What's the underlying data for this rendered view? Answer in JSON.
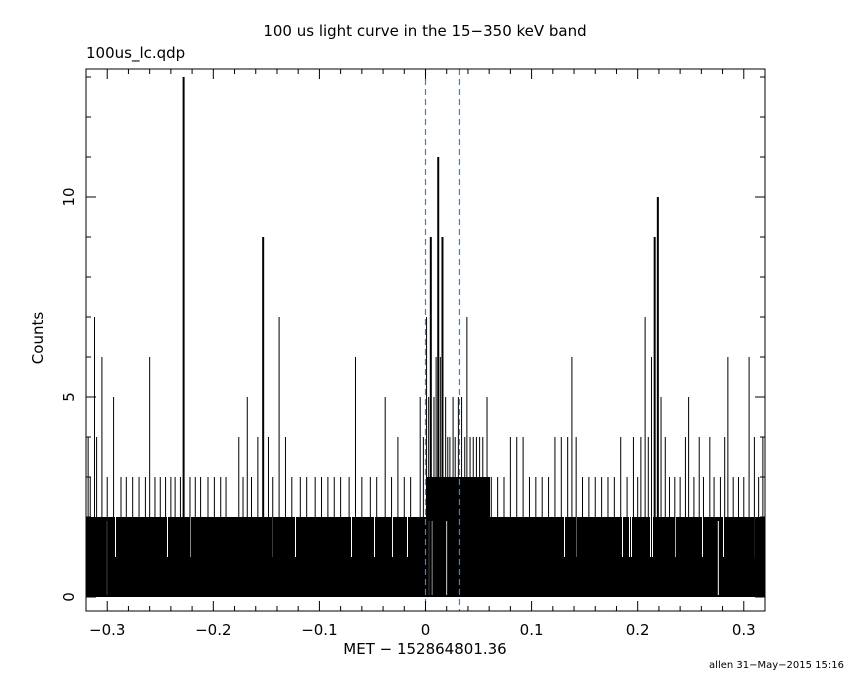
{
  "chart_data": {
    "type": "bar",
    "title": "100 us light curve in the 15−350 keV band",
    "file_label": "100us_lc.qdp",
    "xlabel": "MET − 152864801.36",
    "ylabel": "Counts",
    "footer": "allen 31−May−2015 15:16",
    "xlim": [
      -0.32,
      0.32
    ],
    "ylim": [
      -0.35,
      13.2
    ],
    "xticks_major": [
      -0.3,
      -0.2,
      -0.1,
      0,
      0.1,
      0.2,
      0.3
    ],
    "xtick_labels": [
      "−0.3",
      "−0.2",
      "−0.1",
      "0",
      "0.1",
      "0.2",
      "0.3"
    ],
    "yticks_major": [
      0,
      5,
      10
    ],
    "ytick_labels": [
      "0",
      "5",
      "10"
    ],
    "grid": false,
    "vlines": [
      {
        "x": 0.0,
        "color": "#3a7fd0",
        "style": "dashed"
      },
      {
        "x": 0.032,
        "color": "#3a7fd0",
        "style": "dashed"
      }
    ],
    "bin_width": 0.0001,
    "baseline_level": 2,
    "post_trigger_level": 3,
    "post_trigger_range": [
      0.0,
      0.06
    ],
    "spikes": [
      {
        "x": -0.318,
        "value": 4
      },
      {
        "x": -0.316,
        "value": 3
      },
      {
        "x": -0.312,
        "value": 7
      },
      {
        "x": -0.31,
        "value": 4
      },
      {
        "x": -0.305,
        "value": 6
      },
      {
        "x": -0.3,
        "value": 3
      },
      {
        "x": -0.294,
        "value": 5
      },
      {
        "x": -0.287,
        "value": 3
      },
      {
        "x": -0.282,
        "value": 3
      },
      {
        "x": -0.276,
        "value": 3
      },
      {
        "x": -0.27,
        "value": 3
      },
      {
        "x": -0.264,
        "value": 3
      },
      {
        "x": -0.26,
        "value": 6
      },
      {
        "x": -0.255,
        "value": 3
      },
      {
        "x": -0.25,
        "value": 3
      },
      {
        "x": -0.245,
        "value": 3
      },
      {
        "x": -0.24,
        "value": 3
      },
      {
        "x": -0.236,
        "value": 3
      },
      {
        "x": -0.231,
        "value": 3
      },
      {
        "x": -0.228,
        "value": 13
      },
      {
        "x": -0.222,
        "value": 3
      },
      {
        "x": -0.217,
        "value": 3
      },
      {
        "x": -0.212,
        "value": 3
      },
      {
        "x": -0.205,
        "value": 3
      },
      {
        "x": -0.199,
        "value": 3
      },
      {
        "x": -0.193,
        "value": 3
      },
      {
        "x": -0.188,
        "value": 3
      },
      {
        "x": -0.176,
        "value": 4
      },
      {
        "x": -0.172,
        "value": 3
      },
      {
        "x": -0.168,
        "value": 5
      },
      {
        "x": -0.164,
        "value": 3
      },
      {
        "x": -0.158,
        "value": 4
      },
      {
        "x": -0.153,
        "value": 9
      },
      {
        "x": -0.148,
        "value": 4
      },
      {
        "x": -0.144,
        "value": 3
      },
      {
        "x": -0.138,
        "value": 7
      },
      {
        "x": -0.132,
        "value": 4
      },
      {
        "x": -0.126,
        "value": 3
      },
      {
        "x": -0.118,
        "value": 3
      },
      {
        "x": -0.112,
        "value": 3
      },
      {
        "x": -0.104,
        "value": 3
      },
      {
        "x": -0.098,
        "value": 3
      },
      {
        "x": -0.092,
        "value": 3
      },
      {
        "x": -0.086,
        "value": 3
      },
      {
        "x": -0.08,
        "value": 3
      },
      {
        "x": -0.072,
        "value": 3
      },
      {
        "x": -0.066,
        "value": 6
      },
      {
        "x": -0.06,
        "value": 3
      },
      {
        "x": -0.052,
        "value": 3
      },
      {
        "x": -0.046,
        "value": 3
      },
      {
        "x": -0.038,
        "value": 5
      },
      {
        "x": -0.032,
        "value": 3
      },
      {
        "x": -0.026,
        "value": 4
      },
      {
        "x": -0.02,
        "value": 3
      },
      {
        "x": -0.014,
        "value": 3
      },
      {
        "x": -0.005,
        "value": 5
      },
      {
        "x": -0.002,
        "value": 4
      },
      {
        "x": 0.001,
        "value": 7
      },
      {
        "x": 0.003,
        "value": 5
      },
      {
        "x": 0.005,
        "value": 9
      },
      {
        "x": 0.008,
        "value": 5
      },
      {
        "x": 0.01,
        "value": 6
      },
      {
        "x": 0.012,
        "value": 11
      },
      {
        "x": 0.014,
        "value": 6
      },
      {
        "x": 0.016,
        "value": 9
      },
      {
        "x": 0.019,
        "value": 5
      },
      {
        "x": 0.021,
        "value": 4
      },
      {
        "x": 0.023,
        "value": 4
      },
      {
        "x": 0.026,
        "value": 5
      },
      {
        "x": 0.028,
        "value": 4
      },
      {
        "x": 0.031,
        "value": 5
      },
      {
        "x": 0.034,
        "value": 5
      },
      {
        "x": 0.037,
        "value": 4
      },
      {
        "x": 0.039,
        "value": 7
      },
      {
        "x": 0.042,
        "value": 4
      },
      {
        "x": 0.045,
        "value": 4
      },
      {
        "x": 0.048,
        "value": 4
      },
      {
        "x": 0.051,
        "value": 4
      },
      {
        "x": 0.054,
        "value": 4
      },
      {
        "x": 0.058,
        "value": 5
      },
      {
        "x": 0.062,
        "value": 3
      },
      {
        "x": 0.068,
        "value": 3
      },
      {
        "x": 0.074,
        "value": 3
      },
      {
        "x": 0.08,
        "value": 4
      },
      {
        "x": 0.086,
        "value": 4
      },
      {
        "x": 0.092,
        "value": 4
      },
      {
        "x": 0.098,
        "value": 3
      },
      {
        "x": 0.104,
        "value": 3
      },
      {
        "x": 0.11,
        "value": 3
      },
      {
        "x": 0.116,
        "value": 3
      },
      {
        "x": 0.122,
        "value": 4
      },
      {
        "x": 0.128,
        "value": 4
      },
      {
        "x": 0.134,
        "value": 4
      },
      {
        "x": 0.138,
        "value": 6
      },
      {
        "x": 0.142,
        "value": 4
      },
      {
        "x": 0.148,
        "value": 3
      },
      {
        "x": 0.154,
        "value": 3
      },
      {
        "x": 0.16,
        "value": 3
      },
      {
        "x": 0.166,
        "value": 3
      },
      {
        "x": 0.172,
        "value": 3
      },
      {
        "x": 0.178,
        "value": 3
      },
      {
        "x": 0.184,
        "value": 4
      },
      {
        "x": 0.19,
        "value": 3
      },
      {
        "x": 0.196,
        "value": 4
      },
      {
        "x": 0.2,
        "value": 3
      },
      {
        "x": 0.203,
        "value": 4
      },
      {
        "x": 0.207,
        "value": 7
      },
      {
        "x": 0.21,
        "value": 4
      },
      {
        "x": 0.213,
        "value": 6
      },
      {
        "x": 0.216,
        "value": 9
      },
      {
        "x": 0.219,
        "value": 10
      },
      {
        "x": 0.222,
        "value": 5
      },
      {
        "x": 0.226,
        "value": 4
      },
      {
        "x": 0.23,
        "value": 3
      },
      {
        "x": 0.235,
        "value": 3
      },
      {
        "x": 0.24,
        "value": 3
      },
      {
        "x": 0.245,
        "value": 4
      },
      {
        "x": 0.248,
        "value": 5
      },
      {
        "x": 0.253,
        "value": 3
      },
      {
        "x": 0.258,
        "value": 4
      },
      {
        "x": 0.262,
        "value": 3
      },
      {
        "x": 0.268,
        "value": 4
      },
      {
        "x": 0.272,
        "value": 3
      },
      {
        "x": 0.278,
        "value": 3
      },
      {
        "x": 0.282,
        "value": 4
      },
      {
        "x": 0.285,
        "value": 6
      },
      {
        "x": 0.29,
        "value": 3
      },
      {
        "x": 0.295,
        "value": 3
      },
      {
        "x": 0.3,
        "value": 3
      },
      {
        "x": 0.305,
        "value": 6
      },
      {
        "x": 0.31,
        "value": 4
      },
      {
        "x": 0.314,
        "value": 3
      },
      {
        "x": 0.318,
        "value": 4
      }
    ]
  }
}
